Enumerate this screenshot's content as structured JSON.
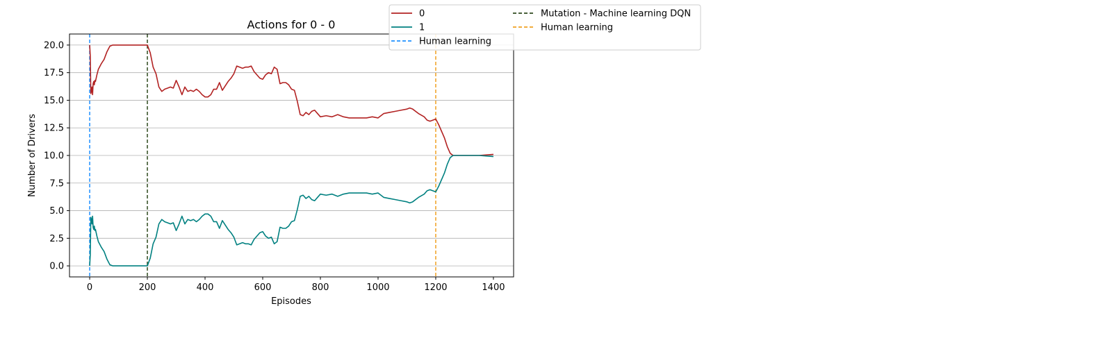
{
  "chart_data": {
    "type": "line",
    "title": "Actions for 0 - 0",
    "xlabel": "Episodes",
    "ylabel": "Number of Drivers",
    "xlim": [
      -70,
      1470
    ],
    "ylim": [
      -1.0,
      21.0
    ],
    "xticks": [
      0,
      200,
      400,
      600,
      800,
      1000,
      1200,
      1400
    ],
    "yticks": [
      0.0,
      2.5,
      5.0,
      7.5,
      10.0,
      12.5,
      15.0,
      17.5,
      20.0
    ],
    "xtick_labels": [
      "0",
      "200",
      "400",
      "600",
      "800",
      "1000",
      "1200",
      "1400"
    ],
    "ytick_labels": [
      "0.0",
      "2.5",
      "5.0",
      "7.5",
      "10.0",
      "12.5",
      "15.0",
      "17.5",
      "20.0"
    ],
    "grid": "horizontal",
    "legend_position": "top-right, outside plot",
    "series": [
      {
        "name": "0",
        "color": "#b22222",
        "x": [
          0,
          2,
          4,
          6,
          8,
          10,
          12,
          14,
          16,
          18,
          20,
          25,
          30,
          40,
          50,
          60,
          70,
          80,
          100,
          150,
          190,
          200,
          210,
          220,
          230,
          240,
          250,
          260,
          270,
          280,
          290,
          300,
          310,
          320,
          330,
          340,
          350,
          360,
          370,
          380,
          390,
          400,
          410,
          420,
          430,
          440,
          450,
          460,
          470,
          480,
          490,
          500,
          510,
          520,
          530,
          540,
          550,
          560,
          570,
          580,
          590,
          600,
          610,
          620,
          630,
          640,
          650,
          660,
          670,
          680,
          690,
          700,
          710,
          720,
          730,
          740,
          750,
          760,
          770,
          780,
          790,
          800,
          820,
          840,
          860,
          880,
          900,
          920,
          940,
          960,
          980,
          1000,
          1020,
          1040,
          1060,
          1080,
          1100,
          1110,
          1120,
          1140,
          1160,
          1170,
          1180,
          1190,
          1200,
          1210,
          1220,
          1230,
          1240,
          1250,
          1260,
          1280,
          1300,
          1350,
          1400
        ],
        "values": [
          20.0,
          19.0,
          15.6,
          15.8,
          16.2,
          15.5,
          16.5,
          16.7,
          16.4,
          16.8,
          16.7,
          17.3,
          17.8,
          18.3,
          18.7,
          19.4,
          19.9,
          20.0,
          20.0,
          20.0,
          20.0,
          20.0,
          19.3,
          18.0,
          17.4,
          16.2,
          15.8,
          16.0,
          16.1,
          16.2,
          16.1,
          16.8,
          16.2,
          15.5,
          16.2,
          15.8,
          15.9,
          15.8,
          16.0,
          15.8,
          15.5,
          15.3,
          15.3,
          15.5,
          16.0,
          16.0,
          16.6,
          15.9,
          16.3,
          16.7,
          17.0,
          17.4,
          18.1,
          18.0,
          17.9,
          18.0,
          18.0,
          18.1,
          17.6,
          17.3,
          17.0,
          16.9,
          17.3,
          17.5,
          17.4,
          18.0,
          17.8,
          16.5,
          16.6,
          16.6,
          16.4,
          16.0,
          15.9,
          14.9,
          13.7,
          13.6,
          13.9,
          13.7,
          14.0,
          14.1,
          13.8,
          13.5,
          13.6,
          13.5,
          13.7,
          13.5,
          13.4,
          13.4,
          13.4,
          13.4,
          13.5,
          13.4,
          13.8,
          13.9,
          14.0,
          14.1,
          14.2,
          14.3,
          14.2,
          13.8,
          13.5,
          13.2,
          13.1,
          13.2,
          13.3,
          12.8,
          12.2,
          11.6,
          10.8,
          10.2,
          10.0,
          10.0,
          10.0,
          10.0,
          10.1
        ]
      },
      {
        "name": "1",
        "color": "#008080",
        "x": [
          0,
          2,
          4,
          6,
          8,
          10,
          12,
          14,
          16,
          18,
          20,
          25,
          30,
          40,
          50,
          60,
          70,
          80,
          100,
          150,
          190,
          200,
          210,
          220,
          230,
          240,
          250,
          260,
          270,
          280,
          290,
          300,
          310,
          320,
          330,
          340,
          350,
          360,
          370,
          380,
          390,
          400,
          410,
          420,
          430,
          440,
          450,
          460,
          470,
          480,
          490,
          500,
          510,
          520,
          530,
          540,
          550,
          560,
          570,
          580,
          590,
          600,
          610,
          620,
          630,
          640,
          650,
          660,
          670,
          680,
          690,
          700,
          710,
          720,
          730,
          740,
          750,
          760,
          770,
          780,
          790,
          800,
          820,
          840,
          860,
          880,
          900,
          920,
          940,
          960,
          980,
          1000,
          1020,
          1040,
          1060,
          1080,
          1100,
          1110,
          1120,
          1140,
          1160,
          1170,
          1180,
          1190,
          1200,
          1210,
          1220,
          1230,
          1240,
          1250,
          1260,
          1280,
          1300,
          1350,
          1400
        ],
        "values": [
          0.0,
          1.0,
          4.4,
          4.2,
          3.8,
          4.5,
          3.5,
          3.3,
          3.6,
          3.2,
          3.3,
          2.7,
          2.2,
          1.7,
          1.3,
          0.6,
          0.1,
          0.0,
          0.0,
          0.0,
          0.0,
          0.0,
          0.7,
          2.0,
          2.6,
          3.8,
          4.2,
          4.0,
          3.9,
          3.8,
          3.9,
          3.2,
          3.8,
          4.5,
          3.8,
          4.2,
          4.1,
          4.2,
          4.0,
          4.2,
          4.5,
          4.7,
          4.7,
          4.5,
          4.0,
          4.0,
          3.4,
          4.1,
          3.7,
          3.3,
          3.0,
          2.6,
          1.9,
          2.0,
          2.1,
          2.0,
          2.0,
          1.9,
          2.4,
          2.7,
          3.0,
          3.1,
          2.7,
          2.5,
          2.6,
          2.0,
          2.2,
          3.5,
          3.4,
          3.4,
          3.6,
          4.0,
          4.1,
          5.1,
          6.3,
          6.4,
          6.1,
          6.3,
          6.0,
          5.9,
          6.2,
          6.5,
          6.4,
          6.5,
          6.3,
          6.5,
          6.6,
          6.6,
          6.6,
          6.6,
          6.5,
          6.6,
          6.2,
          6.1,
          6.0,
          5.9,
          5.8,
          5.7,
          5.8,
          6.2,
          6.5,
          6.8,
          6.9,
          6.8,
          6.7,
          7.2,
          7.8,
          8.4,
          9.2,
          9.8,
          10.0,
          10.0,
          10.0,
          10.0,
          9.9
        ]
      }
    ],
    "vlines": [
      {
        "name": "Human learning",
        "x": 0,
        "color": "#1e90ff"
      },
      {
        "name": "Mutation - Machine learning DQN",
        "x": 200,
        "color": "#2e4a1e"
      },
      {
        "name": "Human learning",
        "x": 1200,
        "color": "#f0a020"
      }
    ],
    "legend_entries": [
      {
        "label": "0",
        "style": "solid",
        "color": "#b22222"
      },
      {
        "label": "1",
        "style": "solid",
        "color": "#008080"
      },
      {
        "label": "Human learning",
        "style": "dashed",
        "color": "#1e90ff"
      },
      {
        "label": "Mutation - Machine learning DQN",
        "style": "dashed",
        "color": "#2e4a1e"
      },
      {
        "label": "Human learning",
        "style": "dashed",
        "color": "#f0a020"
      }
    ]
  }
}
